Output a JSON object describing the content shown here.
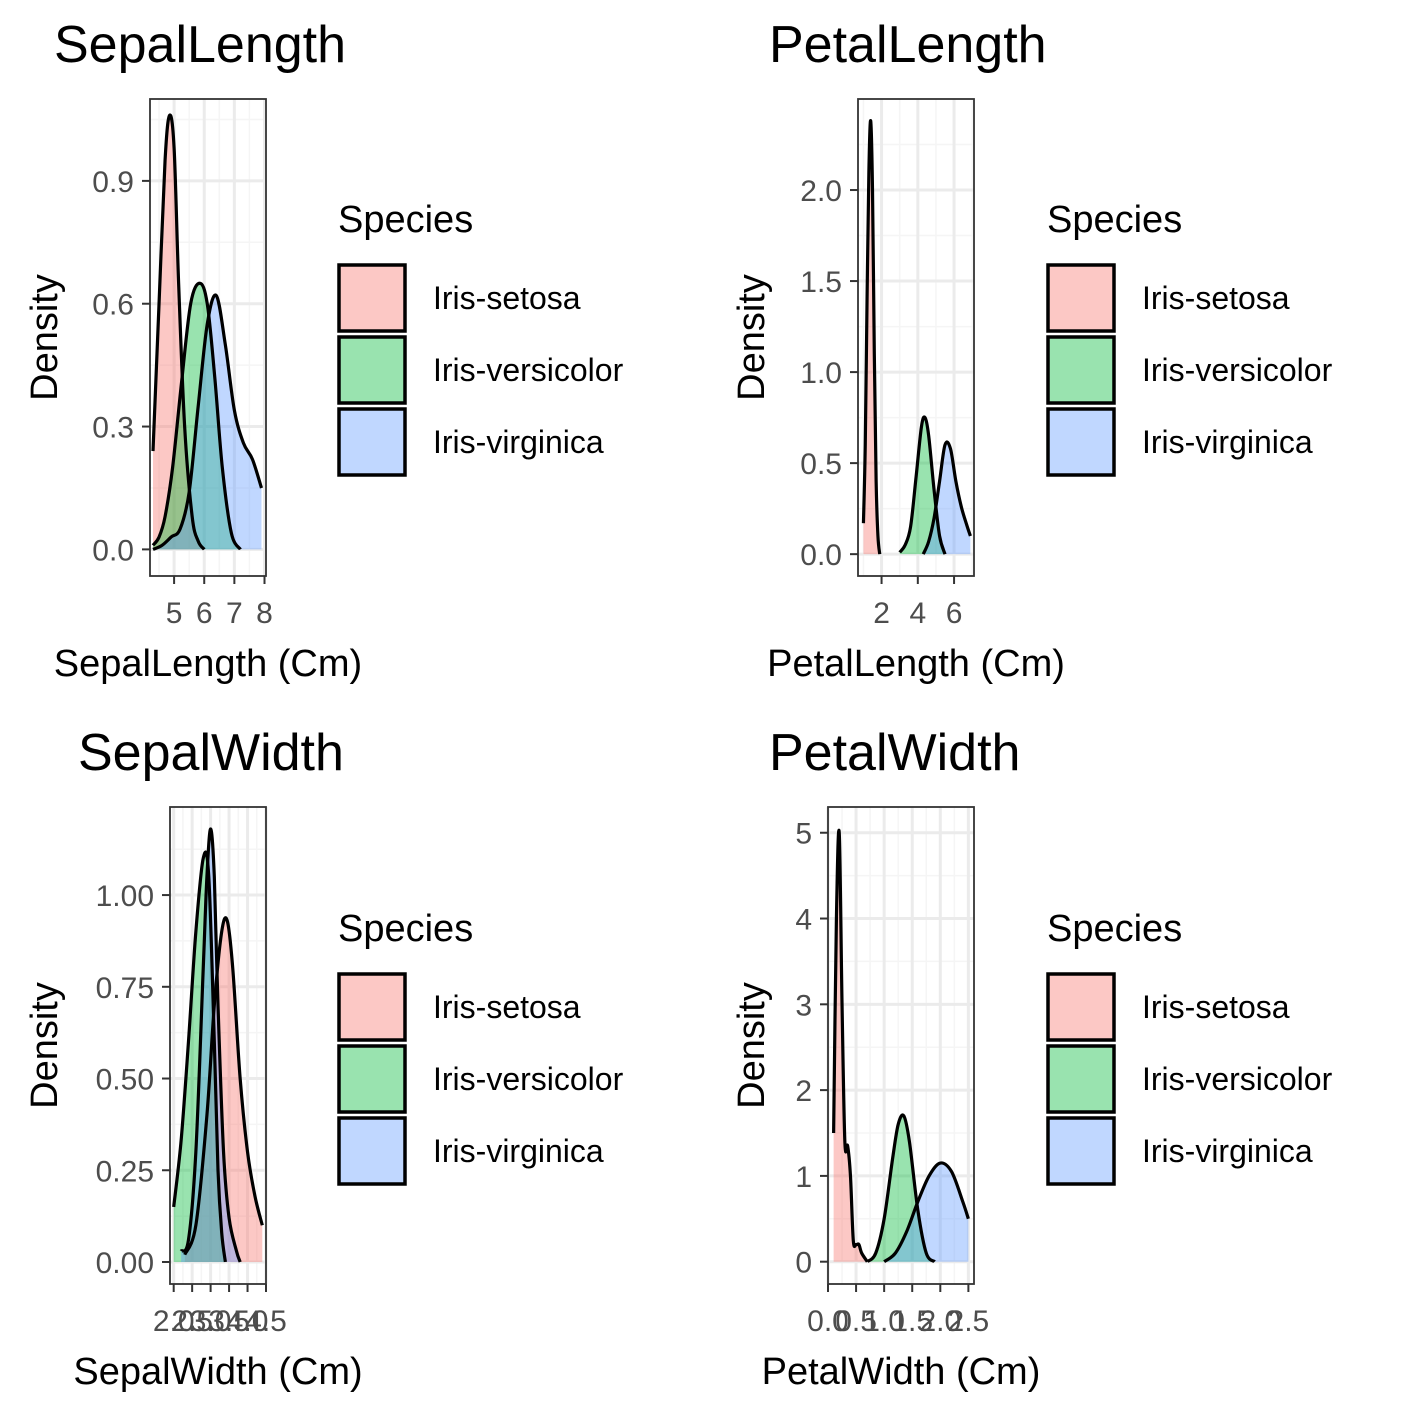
{
  "colors": {
    "setosa_fill": "#F8766D",
    "versicolor_fill": "#00BA38",
    "virginica_fill": "#619CFF",
    "fill_opacity": 0.4,
    "curve": "#000000",
    "grid_major": "#EBEBEB",
    "grid_minor": "#F5F5F5",
    "axis_text": "#4D4D4D",
    "panel_border": "#333333"
  },
  "chart_data": [
    {
      "type": "area",
      "title": "SepalLength",
      "xlabel": "SepalLength (Cm)",
      "ylabel": "Density",
      "xlim": [
        4.2,
        8.05
      ],
      "ylim": [
        -0.065,
        1.1
      ],
      "xticks": [
        5,
        6,
        7,
        8
      ],
      "xtick_labels": [
        "5",
        "6",
        "7",
        "8"
      ],
      "xminor": [
        4.5,
        5.5,
        6.5,
        7.5
      ],
      "yticks": [
        0,
        0.3,
        0.6,
        0.9
      ],
      "ytick_labels": [
        "0.0",
        "0.3",
        "0.6",
        "0.9"
      ],
      "yminor": [
        0.15,
        0.45,
        0.75,
        1.05
      ],
      "grid": true,
      "legend": {
        "title": "Species",
        "position": "right",
        "entries": [
          "Iris-setosa",
          "Iris-versicolor",
          "Iris-virginica"
        ]
      },
      "series": [
        {
          "name": "Iris-setosa",
          "x": [
            4.3,
            4.5,
            4.7,
            4.85,
            5.0,
            5.15,
            5.35,
            5.6,
            5.8,
            6.0
          ],
          "y": [
            0.24,
            0.6,
            0.95,
            1.06,
            0.98,
            0.65,
            0.3,
            0.08,
            0.02,
            0.0
          ]
        },
        {
          "name": "Iris-versicolor",
          "x": [
            4.3,
            4.5,
            4.7,
            4.95,
            5.25,
            5.55,
            5.85,
            6.1,
            6.35,
            6.6,
            6.9,
            7.2
          ],
          "y": [
            0.01,
            0.03,
            0.08,
            0.2,
            0.41,
            0.6,
            0.65,
            0.6,
            0.42,
            0.2,
            0.04,
            0.0
          ]
        },
        {
          "name": "Iris-virginica",
          "x": [
            4.3,
            4.6,
            4.9,
            5.2,
            5.5,
            5.8,
            6.1,
            6.4,
            6.7,
            7.0,
            7.3,
            7.6,
            7.9
          ],
          "y": [
            0.0,
            0.01,
            0.03,
            0.05,
            0.14,
            0.35,
            0.55,
            0.62,
            0.5,
            0.34,
            0.26,
            0.22,
            0.15
          ]
        }
      ]
    },
    {
      "type": "area",
      "title": "PetalLength",
      "xlabel": "PetalLength (Cm)",
      "ylabel": "Density",
      "xlim": [
        0.7,
        7.1
      ],
      "ylim": [
        -0.12,
        2.5
      ],
      "xticks": [
        2,
        4,
        6
      ],
      "xtick_labels": [
        "2",
        "4",
        "6"
      ],
      "xminor": [
        1,
        3,
        5,
        7
      ],
      "yticks": [
        0,
        0.5,
        1.0,
        1.5,
        2.0
      ],
      "ytick_labels": [
        "0.0",
        "0.5",
        "1.0",
        "1.5",
        "2.0"
      ],
      "yminor": [
        0.25,
        0.75,
        1.25,
        1.75,
        2.25
      ],
      "grid": true,
      "legend": {
        "title": "Species",
        "position": "right",
        "entries": [
          "Iris-setosa",
          "Iris-versicolor",
          "Iris-virginica"
        ]
      },
      "series": [
        {
          "name": "Iris-setosa",
          "x": [
            1.0,
            1.1,
            1.2,
            1.3,
            1.4,
            1.5,
            1.6,
            1.7,
            1.8,
            1.9
          ],
          "y": [
            0.17,
            0.6,
            1.4,
            2.1,
            2.38,
            2.0,
            1.1,
            0.4,
            0.1,
            0.0
          ]
        },
        {
          "name": "Iris-versicolor",
          "x": [
            3.0,
            3.3,
            3.6,
            3.9,
            4.2,
            4.4,
            4.6,
            4.9,
            5.2,
            5.5
          ],
          "y": [
            0.01,
            0.05,
            0.15,
            0.42,
            0.7,
            0.75,
            0.65,
            0.35,
            0.1,
            0.0
          ]
        },
        {
          "name": "Iris-virginica",
          "x": [
            4.3,
            4.6,
            4.9,
            5.2,
            5.5,
            5.8,
            6.1,
            6.4,
            6.7,
            6.9
          ],
          "y": [
            0.0,
            0.07,
            0.2,
            0.4,
            0.6,
            0.58,
            0.4,
            0.26,
            0.16,
            0.1
          ]
        }
      ]
    },
    {
      "type": "area",
      "title": "SepalWidth",
      "xlabel": "SepalWidth (Cm)",
      "ylabel": "Density",
      "xlim": [
        1.9,
        4.5
      ],
      "ylim": [
        -0.06,
        1.24
      ],
      "xticks": [
        2.0,
        2.5,
        3.0,
        3.5,
        4.0,
        4.5
      ],
      "xtick_labels": [
        "2.0",
        "2.5",
        "3.0",
        "3.5",
        "4.0",
        "4.5"
      ],
      "xminor": [
        2.25,
        2.75,
        3.25,
        3.75,
        4.25
      ],
      "yticks": [
        0,
        0.25,
        0.5,
        0.75,
        1.0
      ],
      "ytick_labels": [
        "0.00",
        "0.25",
        "0.50",
        "0.75",
        "1.00"
      ],
      "yminor": [
        0.125,
        0.375,
        0.625,
        0.875,
        1.125
      ],
      "grid": true,
      "legend": {
        "title": "Species",
        "position": "right",
        "entries": [
          "Iris-setosa",
          "Iris-versicolor",
          "Iris-virginica"
        ]
      },
      "series": [
        {
          "name": "Iris-setosa",
          "x": [
            2.3,
            2.6,
            2.9,
            3.1,
            3.3,
            3.45,
            3.6,
            3.8,
            4.0,
            4.2,
            4.4
          ],
          "y": [
            0.02,
            0.1,
            0.4,
            0.7,
            0.9,
            0.93,
            0.8,
            0.5,
            0.3,
            0.18,
            0.1
          ]
        },
        {
          "name": "Iris-versicolor",
          "x": [
            2.0,
            2.2,
            2.4,
            2.6,
            2.8,
            2.95,
            3.1,
            3.2,
            3.3,
            3.4
          ],
          "y": [
            0.15,
            0.33,
            0.6,
            0.9,
            1.1,
            1.05,
            0.6,
            0.25,
            0.08,
            0.0
          ]
        },
        {
          "name": "Iris-virginica",
          "x": [
            2.2,
            2.4,
            2.6,
            2.8,
            2.9,
            3.0,
            3.1,
            3.2,
            3.35,
            3.5,
            3.7,
            3.8
          ],
          "y": [
            0.03,
            0.06,
            0.3,
            0.8,
            1.05,
            1.18,
            1.05,
            0.7,
            0.3,
            0.12,
            0.03,
            0.0
          ]
        }
      ]
    },
    {
      "type": "area",
      "title": "PetalWidth",
      "xlabel": "PetalWidth (Cm)",
      "ylabel": "Density",
      "xlim": [
        0.0,
        2.6
      ],
      "ylim": [
        -0.26,
        5.3
      ],
      "xticks": [
        0.0,
        0.5,
        1.0,
        1.5,
        2.0,
        2.5
      ],
      "xtick_labels": [
        "0.0",
        "0.5",
        "1.0",
        "1.5",
        "2.0",
        "2.5"
      ],
      "xminor": [
        0.25,
        0.75,
        1.25,
        1.75,
        2.25
      ],
      "yticks": [
        0,
        1,
        2,
        3,
        4,
        5
      ],
      "ytick_labels": [
        "0",
        "1",
        "2",
        "3",
        "4",
        "5"
      ],
      "yminor": [
        0.5,
        1.5,
        2.5,
        3.5,
        4.5
      ],
      "grid": true,
      "legend": {
        "title": "Species",
        "position": "right",
        "entries": [
          "Iris-setosa",
          "Iris-versicolor",
          "Iris-virginica"
        ]
      },
      "series": [
        {
          "name": "Iris-setosa",
          "x": [
            0.1,
            0.15,
            0.2,
            0.25,
            0.3,
            0.35,
            0.4,
            0.45,
            0.5,
            0.55,
            0.6,
            0.7
          ],
          "y": [
            1.5,
            4.0,
            5.0,
            3.0,
            1.4,
            1.35,
            1.0,
            0.25,
            0.2,
            0.2,
            0.1,
            0.0
          ]
        },
        {
          "name": "Iris-versicolor",
          "x": [
            0.7,
            0.85,
            1.0,
            1.15,
            1.25,
            1.35,
            1.45,
            1.6,
            1.75,
            1.9
          ],
          "y": [
            0.0,
            0.1,
            0.5,
            1.2,
            1.6,
            1.7,
            1.4,
            0.6,
            0.1,
            0.0
          ]
        },
        {
          "name": "Iris-virginica",
          "x": [
            1.0,
            1.2,
            1.4,
            1.6,
            1.8,
            2.0,
            2.2,
            2.4,
            2.5
          ],
          "y": [
            0.0,
            0.1,
            0.35,
            0.7,
            1.0,
            1.15,
            1.05,
            0.7,
            0.5
          ]
        }
      ]
    }
  ]
}
